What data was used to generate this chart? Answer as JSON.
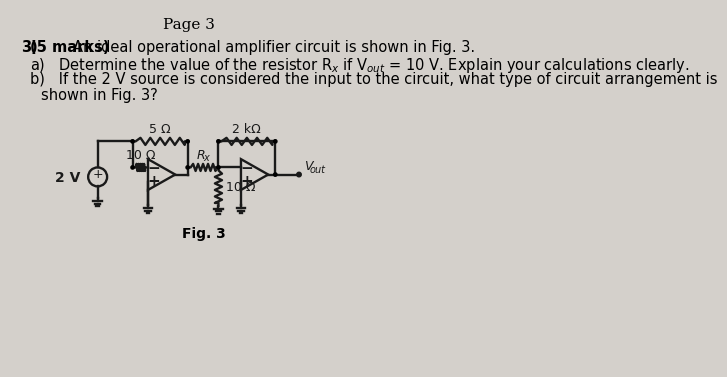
{
  "bg_color": "#d4d0cb",
  "lc": "#1a1a1a",
  "page_title": "Page 3",
  "q3_bold": "3)  (5 marks)",
  "q3_rest": " An ideal operational amplifier circuit is shown in Fig. 3.",
  "qa": "a)   Determine the value of the resistor R",
  "qa_sub": "x",
  "qa_mid": " if V",
  "qa_sub2": "out",
  "qa_end": " = 10 V. Explain your calculations clearly.",
  "qb1": "b)   If the 2 V source is considered the input to the circuit, what type of circuit arrangement is",
  "qb2": "      shown in Fig. 3?",
  "fig_label": "Fig. 3",
  "res_10ohm_label": "10 Ω",
  "res_5ohm_label": "5 Ω",
  "res_rx_label": "R",
  "res_rx_sub": "x",
  "res_2k_label": "2 kΩ",
  "res_10ohm2_label": "10 Ω",
  "vs_label": "2 V",
  "vout_label": "V",
  "vout_sub": "out"
}
